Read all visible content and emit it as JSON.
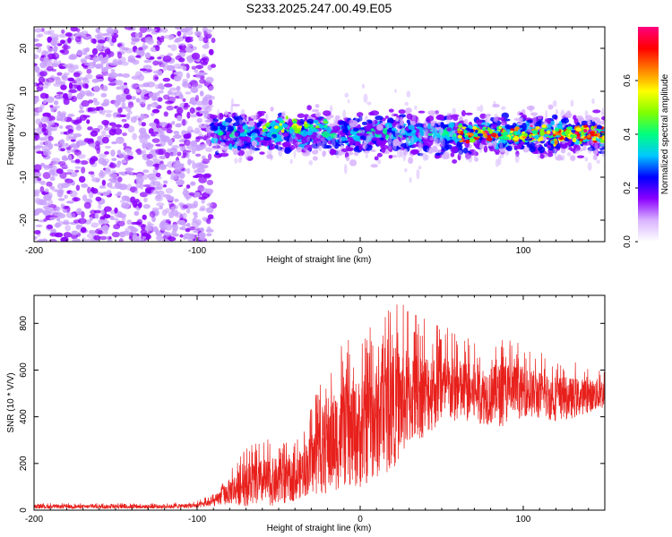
{
  "chart_data": [
    {
      "type": "heatmap",
      "title": "S233.2025.247.00.49.E05",
      "xlabel": "Height of straight line (km)",
      "ylabel": "Frequency (Hz)",
      "xlim": [
        -200,
        150
      ],
      "ylim": [
        -25,
        25
      ],
      "xticks": [
        -200,
        -100,
        0,
        100
      ],
      "xtick_labels": [
        "-200",
        "-100",
        "0",
        "100"
      ],
      "yticks": [
        -20,
        -10,
        0,
        10,
        20
      ],
      "ytick_labels": [
        "-20",
        "-10",
        "0",
        "10",
        "20"
      ],
      "colorbar": {
        "label": "Normalized spectral amplitude",
        "range": [
          0.0,
          0.8
        ],
        "ticks": [
          0.0,
          0.2,
          0.4,
          0.6
        ],
        "tick_labels": [
          "0.0",
          "0.2",
          "0.4",
          "0.6"
        ],
        "colors": [
          "#ffffff",
          "#d9b3ff",
          "#8b00ff",
          "#0000ff",
          "#00c8ff",
          "#00ff80",
          "#80ff00",
          "#ffff00",
          "#ff8000",
          "#ff0000",
          "#ff0080"
        ]
      },
      "regions": [
        {
          "x_range": [
            -200,
            -90
          ],
          "freq_halfwidth": 25,
          "typical_amplitude": 0.05,
          "description": "noise"
        },
        {
          "x_range": [
            -90,
            150
          ],
          "freq_center": 0,
          "freq_halfwidth": 8,
          "typical_amplitude": 0.25
        },
        {
          "x_range": [
            60,
            150
          ],
          "freq_center": 0,
          "freq_halfwidth": 3,
          "peak_amplitude": 0.75
        }
      ]
    },
    {
      "type": "line",
      "xlabel": "Height of straight line (km)",
      "ylabel": "SNR (10 * V/V)",
      "xlim": [
        -200,
        150
      ],
      "ylim": [
        0,
        920
      ],
      "xticks": [
        -200,
        -100,
        0,
        100
      ],
      "xtick_labels": [
        "-200",
        "-100",
        "0",
        "100"
      ],
      "yticks": [
        0,
        200,
        400,
        600,
        800
      ],
      "ytick_labels": [
        "0",
        "200",
        "400",
        "600",
        "800"
      ],
      "color": "#e8201c",
      "series": [
        {
          "name": "SNR",
          "x": [
            -200,
            -180,
            -160,
            -140,
            -120,
            -100,
            -90,
            -80,
            -70,
            -60,
            -50,
            -40,
            -30,
            -20,
            -10,
            0,
            10,
            20,
            30,
            40,
            50,
            60,
            70,
            80,
            90,
            100,
            110,
            120,
            130,
            140,
            150
          ],
          "mean": [
            15,
            15,
            15,
            15,
            15,
            20,
            35,
            80,
            110,
            120,
            120,
            130,
            200,
            280,
            320,
            330,
            380,
            440,
            480,
            500,
            520,
            510,
            500,
            490,
            500,
            510,
            490,
            480,
            480,
            490,
            500
          ],
          "peak": [
            30,
            30,
            30,
            30,
            30,
            40,
            70,
            180,
            280,
            300,
            310,
            290,
            440,
            680,
            720,
            760,
            830,
            920,
            860,
            830,
            800,
            760,
            730,
            720,
            760,
            700,
            680,
            660,
            640,
            620,
            620
          ]
        }
      ]
    }
  ]
}
